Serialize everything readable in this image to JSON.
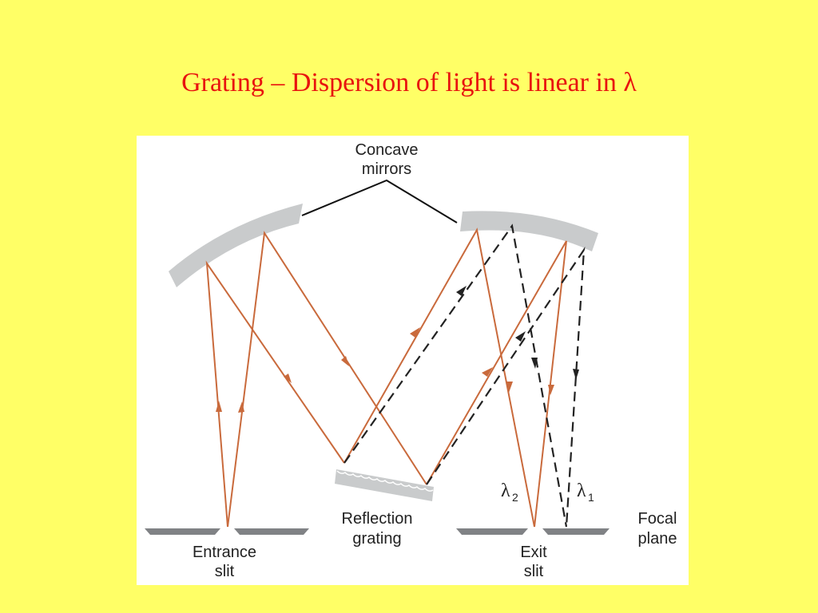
{
  "slide": {
    "title": "Grating – Dispersion of light is linear in λ"
  },
  "figure": {
    "labels": {
      "concave_line1": "Concave",
      "concave_line2": "mirrors",
      "entrance_line1": "Entrance",
      "entrance_line2": "slit",
      "reflection_line1": "Reflection",
      "reflection_line2": "grating",
      "exit_line1": "Exit",
      "exit_line2": "slit",
      "focal_line1": "Focal",
      "focal_line2": "plane",
      "lambda2_symbol": "λ",
      "lambda2_sub": "2",
      "lambda1_symbol": "λ",
      "lambda1_sub": "1"
    },
    "colors": {
      "background": "#ffff66",
      "title": "#e8130f",
      "ray_solid": "#c96a3c",
      "ray_dashed": "#222222",
      "mirror": "#c9cbcc",
      "slit": "#808285"
    }
  }
}
